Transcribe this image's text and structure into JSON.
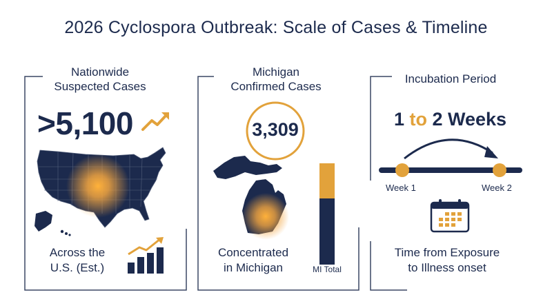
{
  "title": "2026 Cyclospora Outbreak: Scale of Cases & Timeline",
  "colors": {
    "navy": "#1c2a4d",
    "accent": "#e2a23b",
    "frame": "#3a4763"
  },
  "panels": {
    "nationwide": {
      "heading_line1": "Nationwide",
      "heading_line2": "Suspected Cases",
      "value": ">5,100",
      "caption_line1": "Across the",
      "caption_line2": "U.S. (Est.)",
      "icons": [
        "trend-up-arrow-icon",
        "us-map-icon",
        "bar-chart-growth-icon"
      ]
    },
    "michigan": {
      "heading_line1": "Michigan",
      "heading_line2": "Confirmed Cases",
      "value": "3,309",
      "caption_line1": "Concentrated",
      "caption_line2": "in Michigan",
      "bar_label": "MI Total",
      "bar_fill_fraction": 0.35,
      "icons": [
        "michigan-map-icon"
      ]
    },
    "incubation": {
      "heading": "Incubation Period",
      "range_start": "1",
      "range_connector": "to",
      "range_end": "2 Weeks",
      "week_start_label": "Week 1",
      "week_end_label": "Week 2",
      "caption_line1": "Time from Exposure",
      "caption_line2": "to Illness onset",
      "icons": [
        "curved-arrow-icon",
        "calendar-icon"
      ]
    }
  }
}
